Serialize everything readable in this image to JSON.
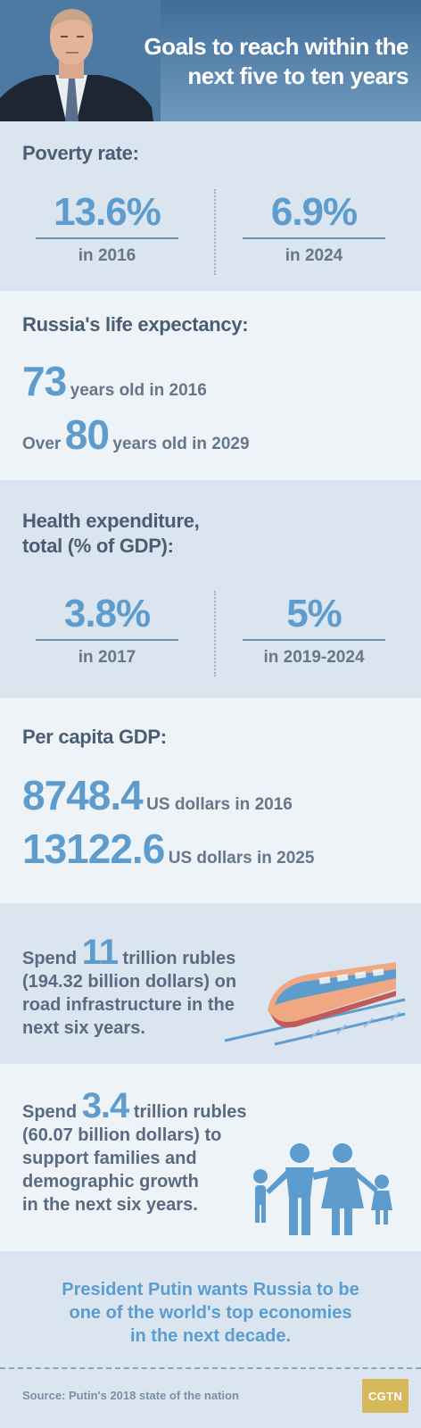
{
  "header": {
    "title_line1": "Goals to reach within the",
    "title_line2": "next five to ten years"
  },
  "poverty": {
    "title": "Poverty rate:",
    "left_value": "13.6%",
    "left_label": "in 2016",
    "right_value": "6.9%",
    "right_label": "in 2024"
  },
  "life": {
    "title": "Russia's life expectancy:",
    "row1_num": "73",
    "row1_text": "years old in 2016",
    "row2_prefix": "Over",
    "row2_num": "80",
    "row2_text": "years old in 2029"
  },
  "health": {
    "title_line1": "Health expenditure,",
    "title_line2": "total (% of GDP):",
    "left_value": "3.8%",
    "left_label": "in 2017",
    "right_value": "5%",
    "right_label": "in 2019-2024"
  },
  "gdp": {
    "title": "Per capita GDP:",
    "row1_num": "8748.4",
    "row1_text": "US dollars in 2016",
    "row2_num": "13122.6",
    "row2_text": "US dollars in 2025"
  },
  "road": {
    "prefix": "Spend",
    "num": "11",
    "line1_rest": "trillion rubles",
    "line2": "(194.32 billion dollars) on",
    "line3": "road infrastructure in the",
    "line4": "next six years.",
    "icon": "train-icon"
  },
  "families": {
    "prefix": "Spend",
    "num": "3.4",
    "line1_rest": "trillion rubles",
    "line2": "(60.07 billion dollars) to",
    "line3": "support families and",
    "line4": "demographic growth",
    "line5": "in the next six years.",
    "icon": "family-icon"
  },
  "closing": {
    "line1": "President Putin wants Russia to be",
    "line2": "one of the world's top economies",
    "line3": "in the next decade."
  },
  "footer": {
    "source": "Source: Putin's 2018 state of the nation",
    "logo": "CGTN"
  },
  "colors": {
    "accent": "#5d9ccd",
    "header_bg": "#4f7ca6",
    "text": "#586b80",
    "logo_bg": "#d5b85a"
  }
}
